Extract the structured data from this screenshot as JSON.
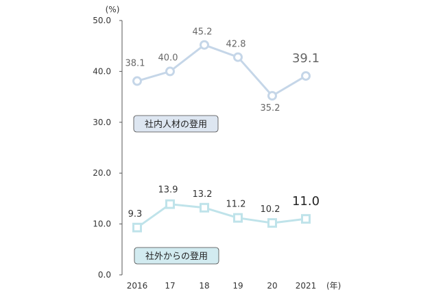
{
  "chart_data": {
    "type": "line",
    "y_unit": "(%)",
    "x_unit": "(年)",
    "categories": [
      "2016",
      "17",
      "18",
      "19",
      "20",
      "2021"
    ],
    "ylim": [
      0,
      50
    ],
    "y_ticks": [
      "0.0",
      "10.0",
      "20.0",
      "30.0",
      "40.0",
      "50.0"
    ],
    "grid": false,
    "series": [
      {
        "name": "社内人材の登用",
        "values": [
          38.1,
          40.0,
          45.2,
          42.8,
          35.2,
          39.1
        ],
        "labels": [
          "38.1",
          "40.0",
          "45.2",
          "42.8",
          "35.2",
          "39.1"
        ],
        "marker": "circle",
        "color": "#c5d6e8",
        "label_box_color": "#dde6f1"
      },
      {
        "name": "社外からの登用",
        "values": [
          9.3,
          13.9,
          13.2,
          11.2,
          10.2,
          11.0
        ],
        "labels": [
          "9.3",
          "13.9",
          "13.2",
          "11.2",
          "10.2",
          "11.0"
        ],
        "marker": "square",
        "color": "#bfe3ea",
        "label_box_color": "#d2ebf0"
      }
    ]
  }
}
